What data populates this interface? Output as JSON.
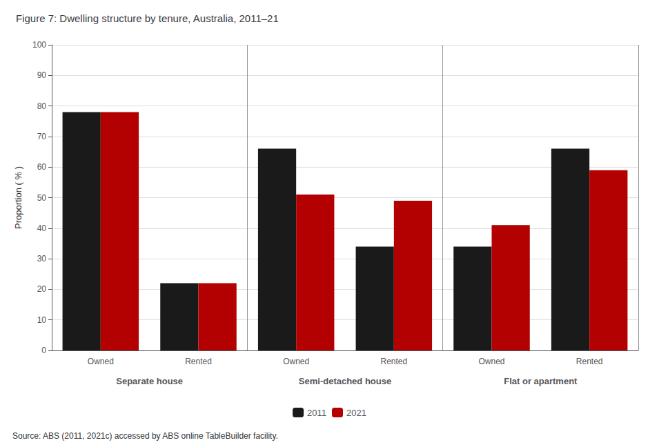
{
  "chart_data": {
    "type": "bar",
    "title": "Figure 7: Dwelling structure by tenure, Australia, 2011–21",
    "ylabel": "Proportion ( % )",
    "source": "Source: ABS (2011, 2021c) accessed by ABS online TableBuilder facility.",
    "categories": [
      "Owned",
      "Rented",
      "Owned",
      "Rented",
      "Owned",
      "Rented"
    ],
    "category_groups": [
      "Separate house",
      "Semi-detached house",
      "Flat or apartment"
    ],
    "series": [
      {
        "name": "2011",
        "color": "#1a1a1a",
        "values": [
          78,
          22,
          66,
          34,
          34,
          66
        ]
      },
      {
        "name": "2021",
        "color": "#b30000",
        "values": [
          78,
          22,
          51,
          49,
          41,
          59
        ]
      }
    ],
    "ylim": [
      0,
      100
    ],
    "yticks": [
      0,
      10,
      20,
      30,
      40,
      50,
      60,
      70,
      80,
      90,
      100
    ],
    "grid": true,
    "legend": "bottom"
  }
}
